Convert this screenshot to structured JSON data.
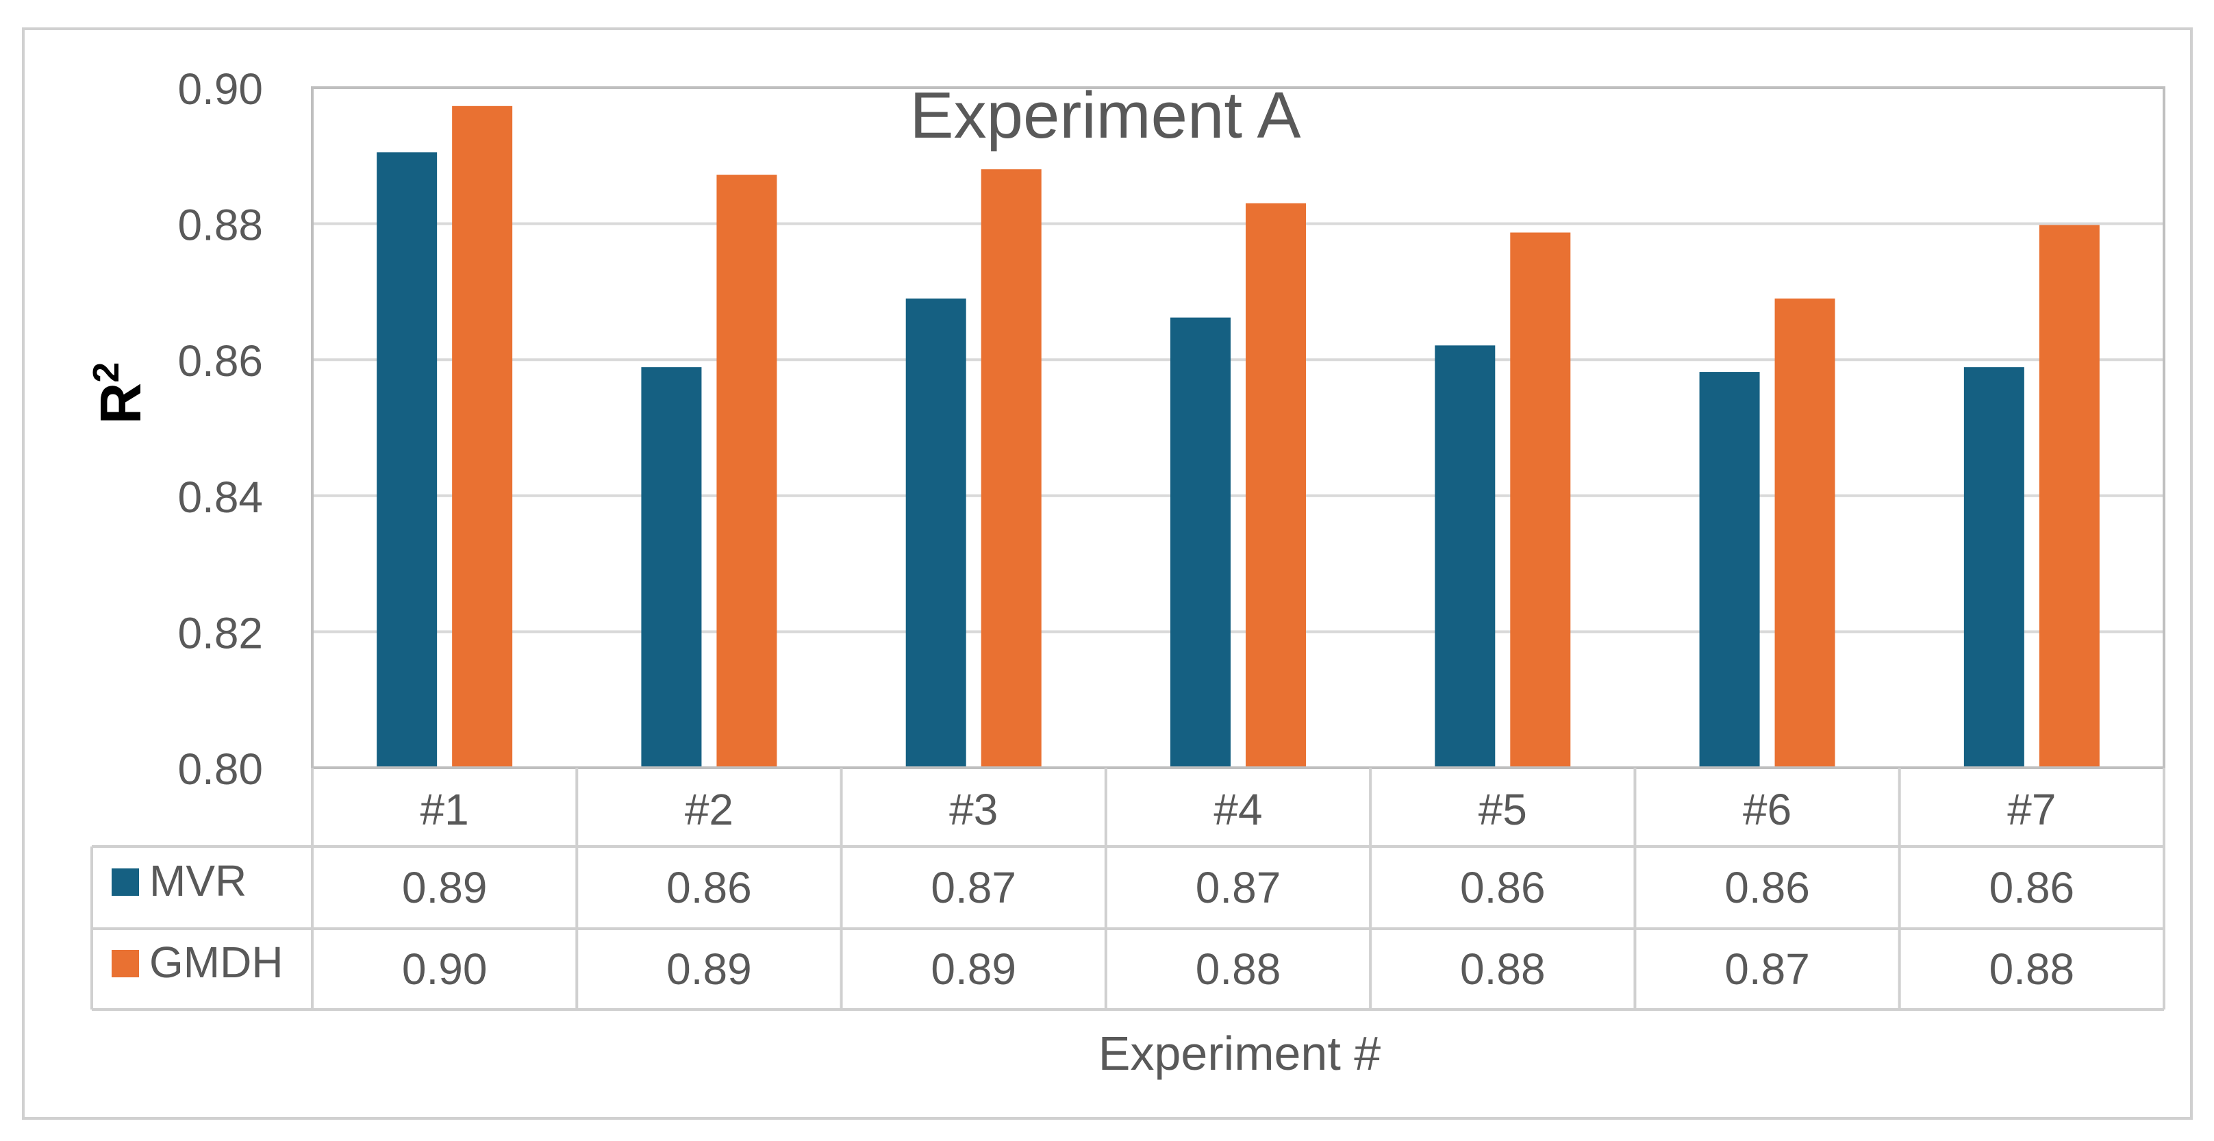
{
  "chart_data": {
    "type": "bar",
    "title": "Experiment A",
    "xlabel": "Experiment #",
    "ylabel": "R",
    "ylabel_superscript": "2",
    "categories": [
      "#1",
      "#2",
      "#3",
      "#4",
      "#5",
      "#6",
      "#7"
    ],
    "series": [
      {
        "name": "MVR",
        "color": "#156082",
        "values": [
          0.8905,
          0.8589,
          0.869,
          0.8662,
          0.8621,
          0.8582,
          0.8589
        ],
        "table_labels": [
          "0.89",
          "0.86",
          "0.87",
          "0.87",
          "0.86",
          "0.86",
          "0.86"
        ]
      },
      {
        "name": "GMDH",
        "color": "#E97132",
        "values": [
          0.8973,
          0.8872,
          0.888,
          0.883,
          0.8787,
          0.869,
          0.8798
        ],
        "table_labels": [
          "0.90",
          "0.89",
          "0.89",
          "0.88",
          "0.88",
          "0.87",
          "0.88"
        ]
      }
    ],
    "ylim": [
      0.8,
      0.9
    ],
    "yticks": [
      0.8,
      0.82,
      0.84,
      0.86,
      0.88,
      0.9
    ],
    "ytick_labels": [
      "0.80",
      "0.82",
      "0.84",
      "0.86",
      "0.88",
      "0.90"
    ],
    "grid": true,
    "legend": "data-table"
  }
}
